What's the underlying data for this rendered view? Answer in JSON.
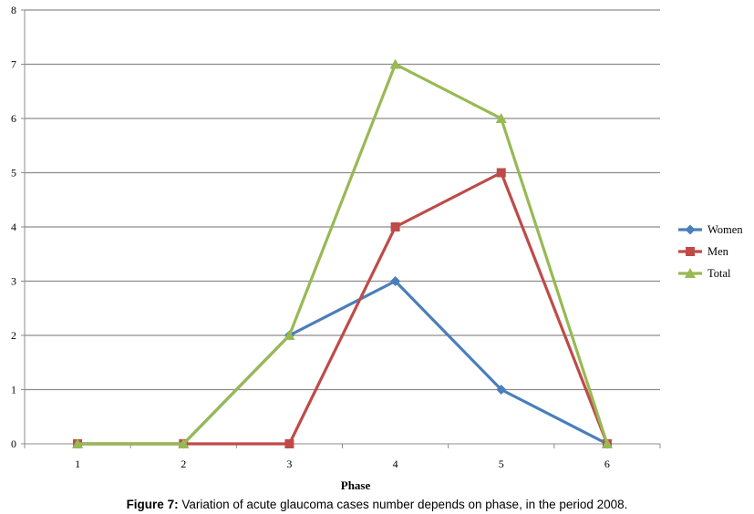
{
  "chart_data": {
    "type": "line",
    "x": [
      1,
      2,
      3,
      4,
      5,
      6
    ],
    "series": [
      {
        "name": "Women",
        "values": [
          0,
          0,
          2,
          3,
          1,
          0
        ],
        "color": "#4a7ebb",
        "marker": "diamond"
      },
      {
        "name": "Men",
        "values": [
          0,
          0,
          0,
          4,
          5,
          0
        ],
        "color": "#be4b48",
        "marker": "square"
      },
      {
        "name": "Total",
        "values": [
          0,
          0,
          2,
          7,
          6,
          0
        ],
        "color": "#98b954",
        "marker": "triangle"
      }
    ],
    "xlabel": "Phase",
    "ylabel": "",
    "ylim": [
      0,
      8
    ],
    "yticks": [
      0,
      1,
      2,
      3,
      4,
      5,
      6,
      7,
      8
    ],
    "grid": true,
    "legend": "right"
  },
  "caption": {
    "label": "Figure 7:",
    "text": " Variation of acute glaucoma cases number depends on phase, in the period 2008."
  }
}
